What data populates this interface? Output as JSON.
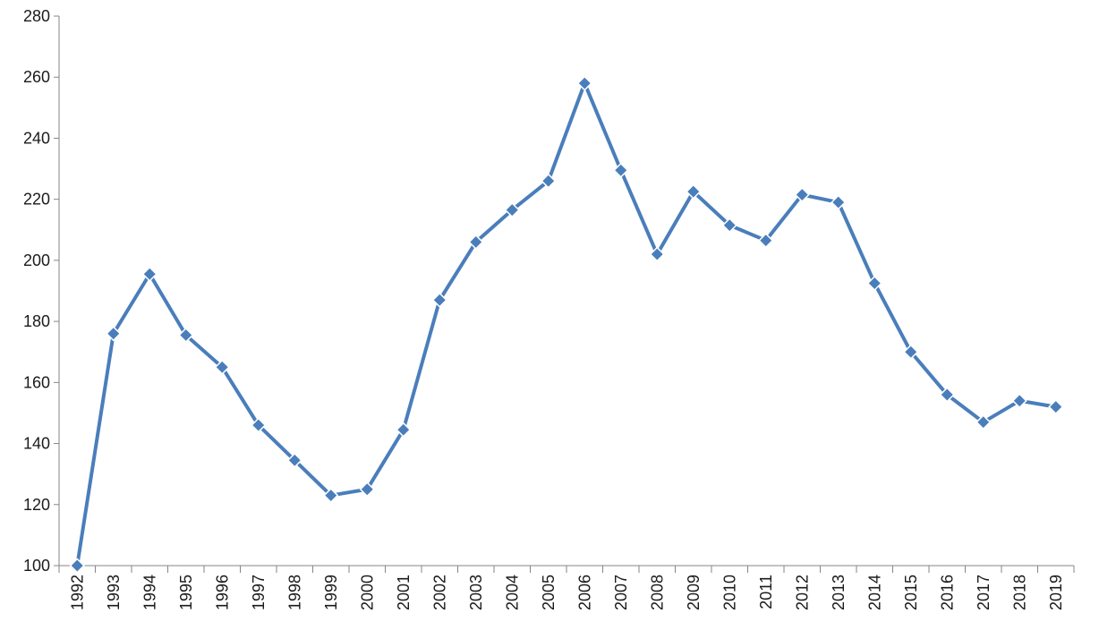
{
  "chart_data": {
    "type": "line",
    "title": "",
    "xlabel": "",
    "ylabel": "",
    "ylim": [
      100,
      280
    ],
    "yticks": [
      100,
      120,
      140,
      160,
      180,
      200,
      220,
      240,
      260,
      280
    ],
    "categories": [
      "1992",
      "1993",
      "1994",
      "1995",
      "1996",
      "1997",
      "1998",
      "1999",
      "2000",
      "2001",
      "2002",
      "2003",
      "2004",
      "2005",
      "2006",
      "2007",
      "2008",
      "2009",
      "2010",
      "2011",
      "2012",
      "2013",
      "2014",
      "2015",
      "2016",
      "2017",
      "2018",
      "2019"
    ],
    "series": [
      {
        "values": [
          100,
          176,
          195.5,
          175.5,
          165,
          146,
          134.5,
          123,
          125,
          144.5,
          187,
          206,
          216.5,
          226,
          258,
          229.5,
          202,
          222.5,
          211.5,
          206.5,
          221.5,
          219,
          192.5,
          170,
          156,
          147,
          154,
          152
        ],
        "color": "#4a7ebb",
        "marker": "diamond"
      }
    ],
    "grid": false,
    "legend": "none"
  }
}
